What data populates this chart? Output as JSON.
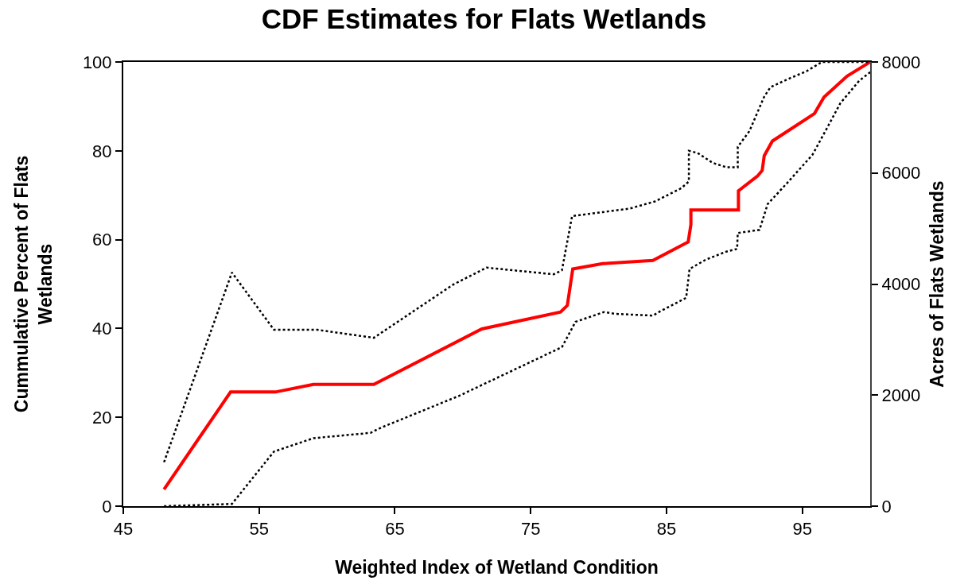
{
  "chart_data": {
    "type": "line",
    "title": "CDF Estimates for Flats Wetlands",
    "xlabel": "Weighted Index of Wetland Condition",
    "ylabel": "Cummulative Percent of Flats\nWetlands",
    "y2label": "Acres of Flats Wetlands",
    "xlim": [
      45,
      100
    ],
    "xticks": [
      45,
      55,
      65,
      75,
      85,
      95
    ],
    "ylim": [
      0,
      100
    ],
    "yticks": [
      0,
      20,
      40,
      60,
      80,
      100
    ],
    "y2lim": [
      0,
      8000
    ],
    "y2ticks": [
      0,
      2000,
      4000,
      6000,
      8000
    ],
    "grid": false,
    "marker": "none",
    "series": [
      {
        "color": "#ff0000",
        "line_style": "solid",
        "x": [
          48.0,
          52.9,
          56.2,
          59.0,
          63.45,
          71.4,
          77.2,
          77.7,
          78.1,
          80.3,
          84.0,
          86.6,
          86.8,
          86.8,
          90.3,
          90.3,
          91.7,
          92.05,
          92.2,
          92.8,
          95.9,
          96.6,
          98.3,
          100
        ],
        "values": [
          3.8,
          25.7,
          25.7,
          27.4,
          27.4,
          39.9,
          43.7,
          45.2,
          53.4,
          54.6,
          55.3,
          59.5,
          63.4,
          66.7,
          66.7,
          71.0,
          74.3,
          75.6,
          78.9,
          82.2,
          88.4,
          92.1,
          96.8,
          100
        ]
      },
      {
        "color": "#000000",
        "line_style": "dotted",
        "x": [
          48.0,
          53.0,
          56.1,
          59.3,
          63.45,
          69.3,
          71.75,
          76.7,
          77.3,
          78.05,
          80.3,
          82.3,
          84.15,
          86.1,
          86.65,
          86.65,
          87.3,
          88.4,
          89.4,
          90.25,
          90.25,
          91.1,
          92.2,
          92.65,
          93.9,
          95.3,
          96.45,
          100
        ],
        "values": [
          9.9,
          52.6,
          39.7,
          39.7,
          37.9,
          49.9,
          53.7,
          52.2,
          53.1,
          65.3,
          66.2,
          67.0,
          68.6,
          71.6,
          73.1,
          80.0,
          79.5,
          77.3,
          76.3,
          76.3,
          80.9,
          84.4,
          92.2,
          94.3,
          96.1,
          97.9,
          100,
          100
        ]
      },
      {
        "color": "#000000",
        "line_style": "dotted",
        "x": [
          48.0,
          53.0,
          56.1,
          59.0,
          63.2,
          64.0,
          69.7,
          77.3,
          78.3,
          80.4,
          81.2,
          84.0,
          84.5,
          86.45,
          86.7,
          87.9,
          89.4,
          90.2,
          90.25,
          91.85,
          92.45,
          93.9,
          95.75,
          96.8,
          97.8,
          99.2,
          100
        ],
        "values": [
          0,
          0.5,
          12.3,
          15.3,
          16.5,
          17.7,
          24.8,
          35.8,
          41.5,
          43.7,
          43.3,
          42.9,
          43.8,
          46.9,
          53.4,
          55.5,
          57.3,
          57.9,
          61.5,
          62.2,
          68.0,
          72.8,
          79.1,
          85.0,
          90.7,
          95.8,
          97.7
        ]
      }
    ]
  }
}
